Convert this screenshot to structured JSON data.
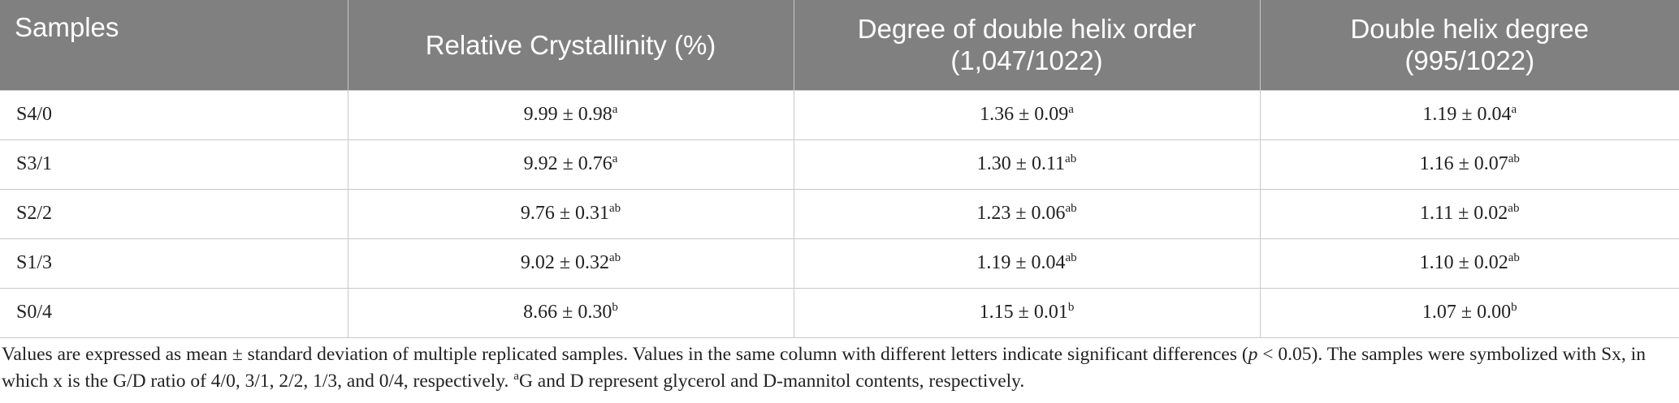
{
  "table": {
    "headers": [
      [
        "Samples"
      ],
      [
        "Relative Crystallinity (%)"
      ],
      [
        "Degree of double helix order",
        "(1,047/1022)"
      ],
      [
        "Double helix degree",
        "(995/1022)"
      ]
    ],
    "rows": [
      [
        "S4/0",
        {
          "text": "9.99 ± 0.98",
          "sup": "a"
        },
        {
          "text": "1.36 ± 0.09",
          "sup": "a"
        },
        {
          "text": "1.19 ± 0.04",
          "sup": "a"
        }
      ],
      [
        "S3/1",
        {
          "text": "9.92 ± 0.76",
          "sup": "a"
        },
        {
          "text": "1.30 ± 0.11",
          "sup": "ab"
        },
        {
          "text": "1.16 ± 0.07",
          "sup": "ab"
        }
      ],
      [
        "S2/2",
        {
          "text": "9.76 ± 0.31",
          "sup": "ab"
        },
        {
          "text": "1.23 ± 0.06",
          "sup": "ab"
        },
        {
          "text": "1.11 ± 0.02",
          "sup": "ab"
        }
      ],
      [
        "S1/3",
        {
          "text": "9.02 ± 0.32",
          "sup": "ab"
        },
        {
          "text": "1.19 ± 0.04",
          "sup": "ab"
        },
        {
          "text": "1.10 ± 0.02",
          "sup": "ab"
        }
      ],
      [
        "S0/4",
        {
          "text": "8.66 ± 0.30",
          "sup": "b"
        },
        {
          "text": "1.15 ± 0.01",
          "sup": "b"
        },
        {
          "text": "1.07 ± 0.00",
          "sup": "b"
        }
      ]
    ]
  },
  "note": {
    "parts": [
      {
        "text": "Values are expressed as mean ± standard deviation of multiple replicated samples. Values in the same column with different letters indicate significant differences ("
      },
      {
        "text": "p",
        "style": "italic"
      },
      {
        "text": " < 0.05). The samples were symbolized with Sx, in which x is the G/D ratio of 4/0, 3/1, 2/2, 1/3, and 0/4, respectively. "
      },
      {
        "text": "a",
        "style": "sup"
      },
      {
        "text": "G and D represent glycerol and D-mannitol contents, respectively."
      }
    ]
  }
}
